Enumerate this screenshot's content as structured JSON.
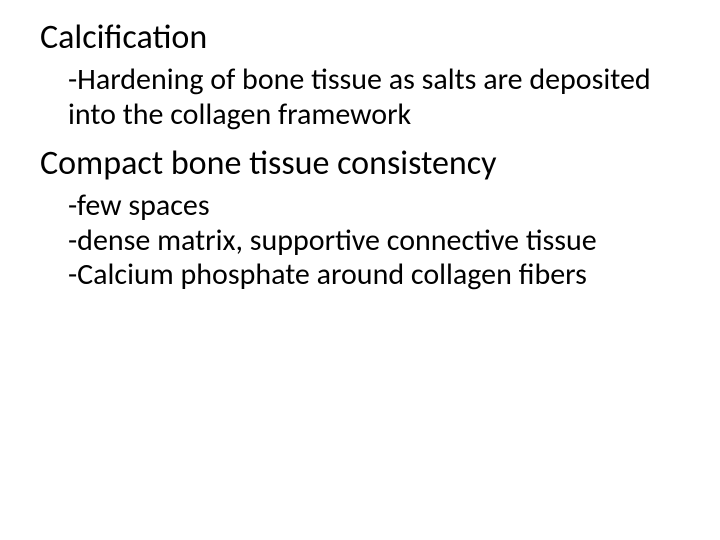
{
  "text_color": "#000000",
  "background_color": "#ffffff",
  "font_family": "Calibri, 'Segoe UI', Arial, sans-serif",
  "sections": [
    {
      "heading": "Calcification",
      "heading_fontsize": 34,
      "body_fontsize": 30,
      "body_lines": [
        "-Hardening of bone tissue as salts are deposited into the collagen framework"
      ]
    },
    {
      "heading": "Compact bone tissue consistency",
      "heading_fontsize": 34,
      "body_fontsize": 30,
      "body_lines": [
        "-few spaces",
        "-dense matrix, supportive connective tissue",
        "-Calcium phosphate around collagen fibers"
      ]
    }
  ]
}
